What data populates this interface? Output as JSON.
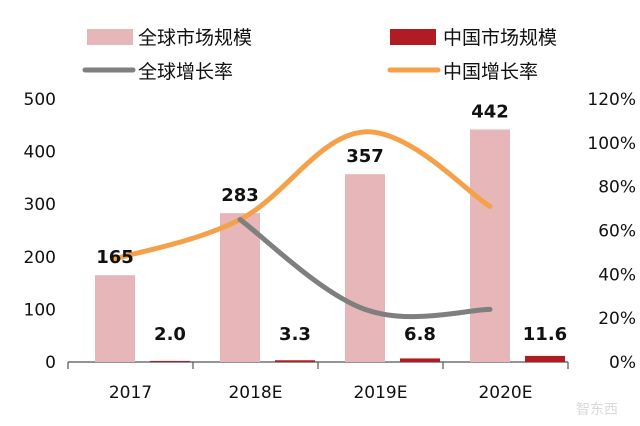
{
  "chart_data": {
    "type": "bar",
    "categories": [
      "2017",
      "2018E",
      "2019E",
      "2020E"
    ],
    "series": [
      {
        "name": "全球市场规模",
        "axis": "left",
        "kind": "bar",
        "color": "#e6b6b8",
        "values": [
          165,
          283,
          357,
          442
        ]
      },
      {
        "name": "中国市场规模",
        "axis": "left",
        "kind": "bar",
        "color": "#b01c22",
        "values": [
          2.0,
          3.3,
          6.8,
          11.6
        ]
      },
      {
        "name": "全球增长率",
        "axis": "right",
        "kind": "line",
        "color": "#7f7f7f",
        "values": [
          null,
          0.65,
          0.24,
          0.24
        ]
      },
      {
        "name": "中国增长率",
        "axis": "right",
        "kind": "line",
        "color": "#f4a14a",
        "values": [
          0.47,
          0.65,
          1.05,
          0.71
        ]
      }
    ],
    "left_axis": {
      "ylim": [
        0,
        500
      ],
      "ticks": [
        "0",
        "100",
        "200",
        "300",
        "400",
        "500"
      ]
    },
    "right_axis": {
      "ylim": [
        0,
        1.2
      ],
      "ticks": [
        "0%",
        "20%",
        "40%",
        "60%",
        "80%",
        "100%",
        "120%"
      ]
    },
    "data_labels": {
      "global": [
        "165",
        "283",
        "357",
        "442"
      ],
      "china": [
        "2.0",
        "3.3",
        "6.8",
        "11.6"
      ]
    },
    "legend_position": "top",
    "grid": false
  },
  "watermark": "智东西"
}
